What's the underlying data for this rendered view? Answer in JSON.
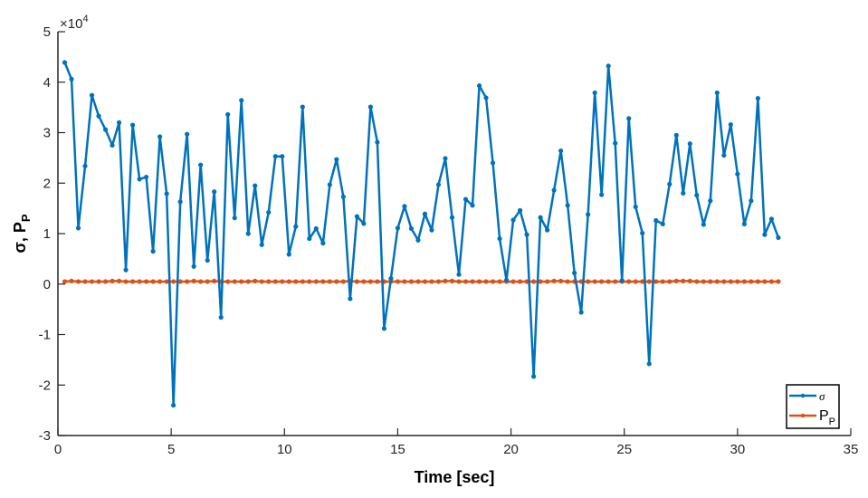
{
  "chart_data": {
    "type": "line",
    "title": "",
    "xlabel": "Time [sec]",
    "ylabel_main": "σ, P",
    "ylabel_sub": "P",
    "y_multiplier_label": "×10",
    "y_multiplier_exp": "4",
    "xlim": [
      0,
      35
    ],
    "ylim": [
      -3,
      5
    ],
    "xticks": [
      "0",
      "5",
      "10",
      "15",
      "20",
      "25",
      "30",
      "35"
    ],
    "yticks": [
      "-3",
      "-2",
      "-1",
      "0",
      "1",
      "2",
      "3",
      "4",
      "5"
    ],
    "grid": false,
    "legend_position": "bottom-right",
    "x_start": 0.3,
    "x_step": 0.3,
    "series": [
      {
        "name": "σ",
        "color": "#0072BD",
        "values": [
          4.39,
          4.06,
          1.11,
          2.34,
          3.74,
          3.33,
          3.06,
          2.75,
          3.2,
          0.28,
          3.15,
          2.08,
          2.12,
          0.65,
          2.92,
          1.79,
          -2.4,
          1.63,
          2.97,
          0.35,
          2.36,
          0.47,
          1.83,
          -0.66,
          3.36,
          1.31,
          3.64,
          1.0,
          1.95,
          0.78,
          1.42,
          2.53,
          2.53,
          0.59,
          1.14,
          3.51,
          0.9,
          1.1,
          0.81,
          1.97,
          2.47,
          1.73,
          -0.29,
          1.34,
          1.2,
          3.51,
          2.81,
          -0.88,
          0.11,
          1.11,
          1.54,
          1.1,
          0.87,
          1.39,
          1.07,
          1.97,
          2.49,
          1.32,
          0.19,
          1.68,
          1.56,
          3.93,
          3.69,
          2.4,
          0.9,
          0.08,
          1.27,
          1.46,
          0.98,
          -1.83,
          1.32,
          1.07,
          1.86,
          2.64,
          1.56,
          0.22,
          -0.56,
          1.38,
          3.79,
          1.77,
          4.32,
          2.79,
          0.07,
          3.28,
          1.53,
          1.01,
          -1.58,
          1.26,
          1.19,
          1.98,
          2.95,
          1.8,
          2.78,
          1.76,
          1.18,
          1.65,
          3.79,
          2.55,
          3.16,
          2.18,
          1.19,
          1.65,
          3.68,
          0.98,
          1.29,
          0.92
        ]
      },
      {
        "name": "P",
        "name_sub": "P",
        "color": "#D95319",
        "values": [
          0.05,
          0.06,
          0.05,
          0.05,
          0.05,
          0.05,
          0.05,
          0.06,
          0.06,
          0.05,
          0.05,
          0.05,
          0.05,
          0.05,
          0.05,
          0.05,
          0.05,
          0.05,
          0.05,
          0.06,
          0.05,
          0.05,
          0.06,
          0.05,
          0.05,
          0.05,
          0.05,
          0.05,
          0.06,
          0.05,
          0.05,
          0.05,
          0.05,
          0.05,
          0.05,
          0.05,
          0.05,
          0.05,
          0.05,
          0.05,
          0.05,
          0.05,
          0.06,
          0.05,
          0.05,
          0.05,
          0.05,
          0.05,
          0.05,
          0.05,
          0.05,
          0.05,
          0.05,
          0.05,
          0.05,
          0.05,
          0.06,
          0.06,
          0.05,
          0.05,
          0.05,
          0.05,
          0.05,
          0.05,
          0.05,
          0.05,
          0.05,
          0.05,
          0.05,
          0.05,
          0.05,
          0.05,
          0.06,
          0.06,
          0.05,
          0.05,
          0.05,
          0.05,
          0.05,
          0.05,
          0.05,
          0.05,
          0.05,
          0.05,
          0.05,
          0.05,
          0.05,
          0.05,
          0.05,
          0.05,
          0.06,
          0.06,
          0.06,
          0.05,
          0.05,
          0.05,
          0.05,
          0.05,
          0.05,
          0.05,
          0.05,
          0.05,
          0.05,
          0.05,
          0.05,
          0.05
        ]
      }
    ]
  }
}
